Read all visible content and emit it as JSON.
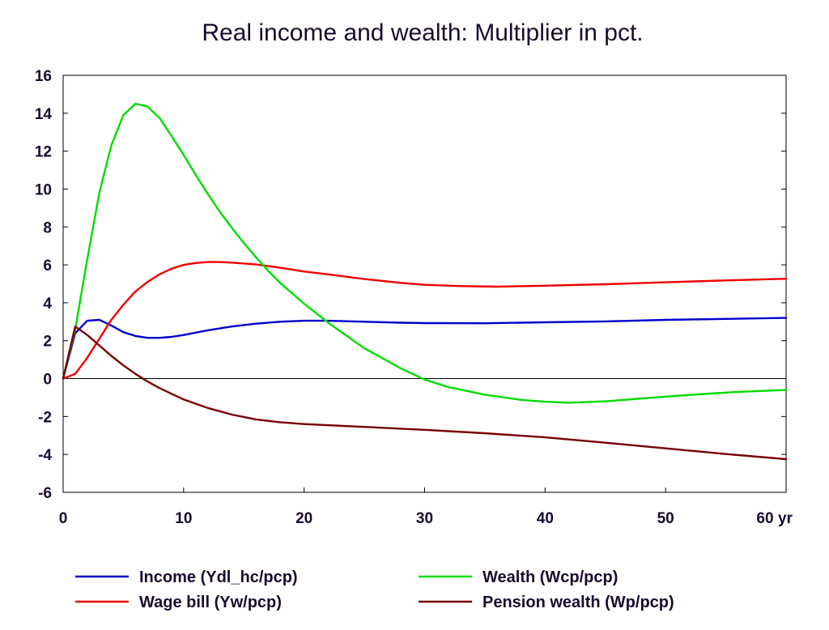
{
  "chart_data": {
    "type": "line",
    "title": "Real income and wealth: Multiplier in pct.",
    "x_unit_label": "yr",
    "xlim": [
      0,
      60
    ],
    "ylim": [
      -6,
      16
    ],
    "x_ticks": [
      0,
      10,
      20,
      30,
      40,
      50,
      60
    ],
    "y_ticks": [
      -6,
      -4,
      -2,
      0,
      2,
      4,
      6,
      8,
      10,
      12,
      14,
      16
    ],
    "grid": false,
    "zero_line": true,
    "legend_position": "bottom",
    "series": [
      {
        "name": "Income (Ydl_hc/pcp)",
        "color": "#0000cc",
        "points": [
          [
            0,
            0
          ],
          [
            1,
            2.4
          ],
          [
            2,
            3.05
          ],
          [
            3,
            3.1
          ],
          [
            4,
            2.8
          ],
          [
            5,
            2.45
          ],
          [
            6,
            2.25
          ],
          [
            7,
            2.15
          ],
          [
            8,
            2.15
          ],
          [
            9,
            2.2
          ],
          [
            10,
            2.3
          ],
          [
            12,
            2.55
          ],
          [
            14,
            2.75
          ],
          [
            16,
            2.9
          ],
          [
            18,
            3.0
          ],
          [
            20,
            3.05
          ],
          [
            22,
            3.05
          ],
          [
            25,
            3.0
          ],
          [
            28,
            2.95
          ],
          [
            30,
            2.93
          ],
          [
            35,
            2.92
          ],
          [
            40,
            2.97
          ],
          [
            45,
            3.02
          ],
          [
            50,
            3.1
          ],
          [
            55,
            3.15
          ],
          [
            60,
            3.2
          ]
        ]
      },
      {
        "name": "Wage bill (Yw/pcp)",
        "color": "#ee0000",
        "points": [
          [
            0,
            0
          ],
          [
            1,
            0.25
          ],
          [
            2,
            1.1
          ],
          [
            3,
            2.1
          ],
          [
            4,
            3.1
          ],
          [
            5,
            3.9
          ],
          [
            6,
            4.6
          ],
          [
            7,
            5.1
          ],
          [
            8,
            5.5
          ],
          [
            9,
            5.8
          ],
          [
            10,
            6.0
          ],
          [
            11,
            6.1
          ],
          [
            12,
            6.15
          ],
          [
            13,
            6.15
          ],
          [
            14,
            6.12
          ],
          [
            16,
            6.02
          ],
          [
            18,
            5.85
          ],
          [
            20,
            5.65
          ],
          [
            22,
            5.5
          ],
          [
            25,
            5.25
          ],
          [
            28,
            5.05
          ],
          [
            30,
            4.95
          ],
          [
            33,
            4.88
          ],
          [
            36,
            4.85
          ],
          [
            40,
            4.9
          ],
          [
            45,
            4.98
          ],
          [
            50,
            5.08
          ],
          [
            55,
            5.18
          ],
          [
            60,
            5.27
          ]
        ]
      },
      {
        "name": "Wealth (Wcp/pcp)",
        "color": "#00dd00",
        "points": [
          [
            0,
            0
          ],
          [
            1,
            2.6
          ],
          [
            2,
            6.3
          ],
          [
            3,
            9.8
          ],
          [
            4,
            12.3
          ],
          [
            5,
            13.9
          ],
          [
            6,
            14.5
          ],
          [
            7,
            14.35
          ],
          [
            8,
            13.75
          ],
          [
            9,
            12.8
          ],
          [
            10,
            11.8
          ],
          [
            11,
            10.75
          ],
          [
            12,
            9.75
          ],
          [
            13,
            8.8
          ],
          [
            14,
            7.95
          ],
          [
            15,
            7.15
          ],
          [
            16,
            6.4
          ],
          [
            17,
            5.7
          ],
          [
            18,
            5.05
          ],
          [
            20,
            3.95
          ],
          [
            22,
            2.95
          ],
          [
            25,
            1.6
          ],
          [
            28,
            0.55
          ],
          [
            30,
            -0.05
          ],
          [
            32,
            -0.45
          ],
          [
            35,
            -0.85
          ],
          [
            38,
            -1.12
          ],
          [
            40,
            -1.22
          ],
          [
            42,
            -1.27
          ],
          [
            45,
            -1.2
          ],
          [
            48,
            -1.05
          ],
          [
            50,
            -0.95
          ],
          [
            53,
            -0.82
          ],
          [
            56,
            -0.7
          ],
          [
            60,
            -0.6
          ]
        ]
      },
      {
        "name": "Pension wealth (Wp/pcp)",
        "color": "#770000",
        "points": [
          [
            0,
            0
          ],
          [
            1,
            2.75
          ],
          [
            2,
            2.3
          ],
          [
            3,
            1.75
          ],
          [
            4,
            1.2
          ],
          [
            5,
            0.7
          ],
          [
            6,
            0.25
          ],
          [
            7,
            -0.15
          ],
          [
            8,
            -0.5
          ],
          [
            10,
            -1.1
          ],
          [
            12,
            -1.55
          ],
          [
            14,
            -1.9
          ],
          [
            16,
            -2.15
          ],
          [
            18,
            -2.3
          ],
          [
            20,
            -2.4
          ],
          [
            25,
            -2.55
          ],
          [
            30,
            -2.7
          ],
          [
            35,
            -2.88
          ],
          [
            40,
            -3.1
          ],
          [
            45,
            -3.38
          ],
          [
            50,
            -3.68
          ],
          [
            55,
            -3.98
          ],
          [
            60,
            -4.25
          ]
        ]
      }
    ]
  }
}
